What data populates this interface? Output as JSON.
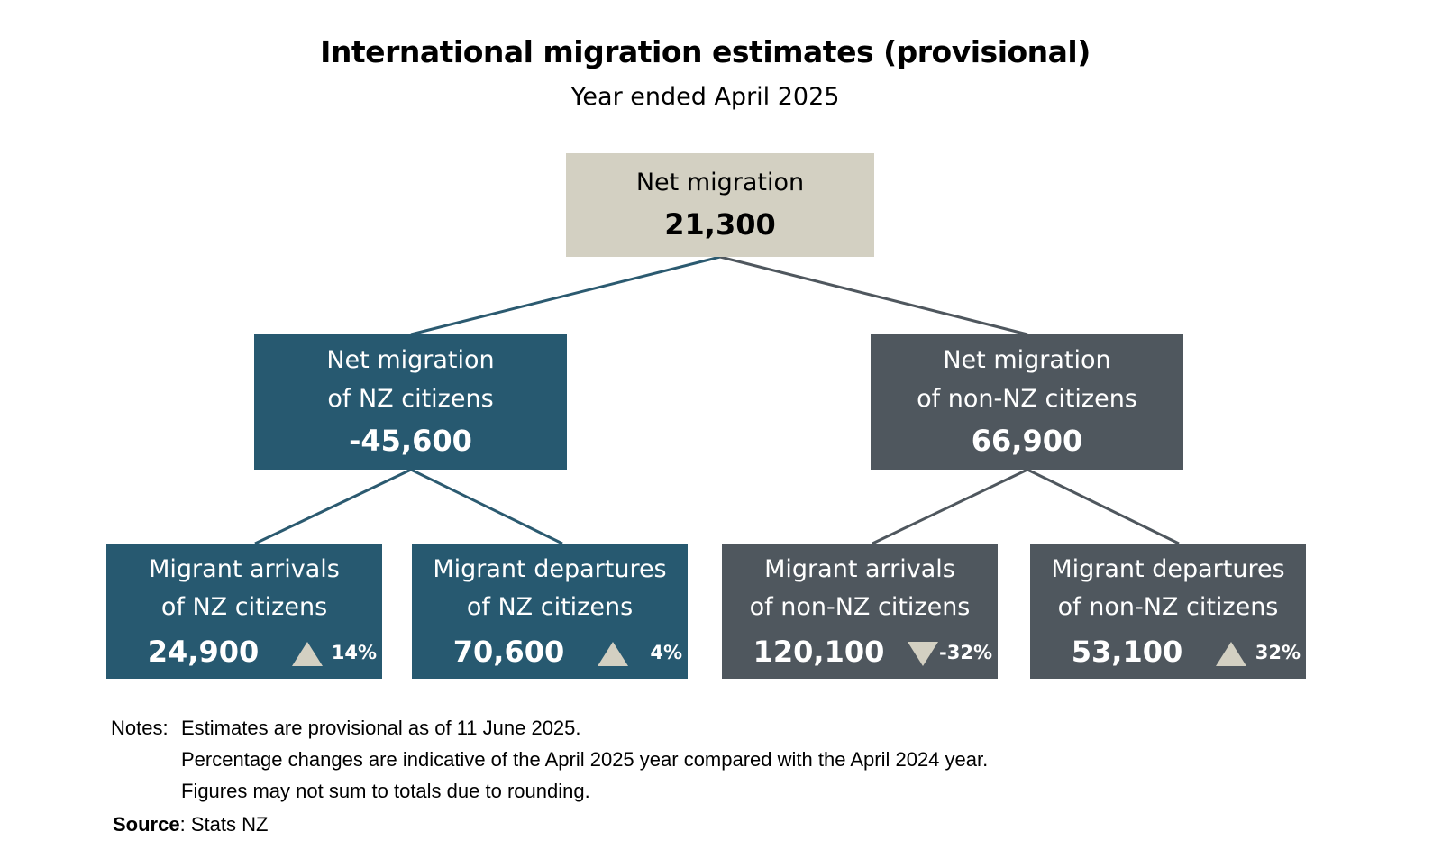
{
  "title": "International migration estimates (provisional)",
  "subtitle": "Year ended April 2025",
  "colors": {
    "nz_box": "#275970",
    "non_nz_box": "#4f575e",
    "total_box": "#d3d0c2",
    "arrow": "#d3d0c2",
    "connector_nz": "#2b5a70",
    "connector_non_nz": "#4f575e"
  },
  "total": {
    "label": "Net migration",
    "value": "21,300"
  },
  "nz_citizens": {
    "label_line1": "Net migration",
    "label_line2": "of NZ citizens",
    "value": "-45,600",
    "arrivals": {
      "label_line1": "Migrant arrivals",
      "label_line2": "of NZ citizens",
      "value": "24,900",
      "direction": "up",
      "change": "14%"
    },
    "departures": {
      "label_line1": "Migrant departures",
      "label_line2": "of NZ citizens",
      "value": "70,600",
      "direction": "up",
      "change": "4%"
    }
  },
  "non_nz_citizens": {
    "label_line1": "Net migration",
    "label_line2": "of non-NZ citizens",
    "value": "66,900",
    "arrivals": {
      "label_line1": "Migrant arrivals",
      "label_line2": "of non-NZ citizens",
      "value": "120,100",
      "direction": "down",
      "change": "-32%"
    },
    "departures": {
      "label_line1": "Migrant departures",
      "label_line2": "of non-NZ citizens",
      "value": "53,100",
      "direction": "up",
      "change": "32%"
    }
  },
  "notes": {
    "prefix": "Notes:",
    "lines": [
      "Estimates are provisional as of 11 June 2025.",
      "Percentage changes are indicative of the April 2025 year compared with the April 2024 year.",
      "Figures may not sum to totals due to rounding."
    ]
  },
  "source": {
    "label": "Source",
    "text": ": Stats NZ"
  }
}
